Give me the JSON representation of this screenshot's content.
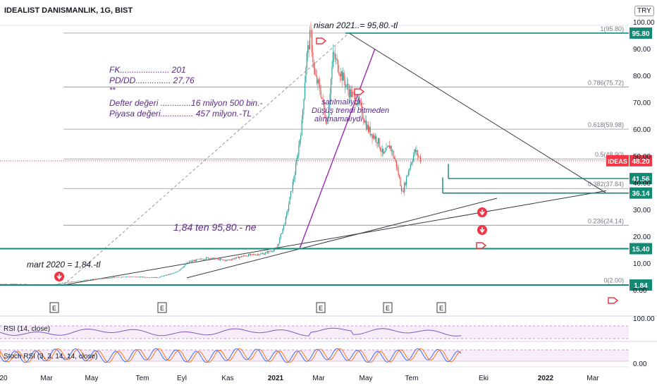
{
  "header": {
    "title": "IDEALIST DANISMANLIK, 1G, BIST",
    "currency": "TRY"
  },
  "colors": {
    "up": "#26a69a",
    "down": "#ef5350",
    "purple": "#9c27b0",
    "teal": "#138a74",
    "red": "#f23645",
    "annotation": "#5b2a86"
  },
  "chart_data": {
    "type": "candlestick",
    "symbol": "IDEAS",
    "last_price": 48.2,
    "last_price_label": "48.20",
    "y_ticks": [
      "100.00",
      "90.00",
      "80.00",
      "70.00",
      "60.00",
      "50.00",
      "40.00",
      "30.00",
      "20.00",
      "10.00",
      "0.00"
    ],
    "x_ticks": [
      "20",
      "Mar",
      "May",
      "Tem",
      "Eyl",
      "Kas",
      "2021",
      "Mar",
      "May",
      "Tem",
      "Eki",
      "2022",
      "Mar"
    ],
    "fibonacci": [
      {
        "ratio": 1,
        "value": 95.8,
        "label": "1(95.80)"
      },
      {
        "ratio": 0.786,
        "value": 75.72,
        "label": "0.786(75.72)"
      },
      {
        "ratio": 0.618,
        "value": 59.98,
        "label": "0.618(59.98)"
      },
      {
        "ratio": 0.5,
        "value": 48.9,
        "label": "0.5(48.90)"
      },
      {
        "ratio": 0.382,
        "value": 37.84,
        "label": "0.382(37.84)"
      },
      {
        "ratio": 0.236,
        "value": 24.14,
        "label": "0.236(24.14)"
      },
      {
        "ratio": 0,
        "value": 2.0,
        "label": "0(2.00)"
      }
    ],
    "horizontal_levels": [
      {
        "value": 95.8,
        "label": "95.80"
      },
      {
        "value": 41.56,
        "label": "41.56"
      },
      {
        "value": 36.14,
        "label": "36.14"
      },
      {
        "value": 15.4,
        "label": "15.40"
      },
      {
        "value": 1.84,
        "label": "1.84"
      }
    ],
    "annotations": {
      "peak": "nisan 2021..= 95,80.-tl",
      "start": "mart 2020 = 1,84.-tl",
      "rise": "1,84 ten 95,80.- ne",
      "fk": "FK..................... 201",
      "pddd": "PD/DD............... 27,76",
      "stars": "**",
      "defter": "Defter değeri .............16 milyon 500 bin.-",
      "piyasa": "Piyasa değeri.............. 457 milyon.-TL",
      "note1": "satılmalıydı..",
      "note2": "Düşüş trendi bitmeden",
      "note3": "alınmamalıydı"
    },
    "earnings_marker": "E",
    "earnings_count": 5,
    "path": [
      [
        0,
        2.2
      ],
      [
        0.05,
        2.0
      ],
      [
        0.085,
        1.84
      ],
      [
        0.1,
        2.6
      ],
      [
        0.15,
        4.0
      ],
      [
        0.2,
        5.0
      ],
      [
        0.25,
        4.6
      ],
      [
        0.28,
        6.5
      ],
      [
        0.3,
        10.5
      ],
      [
        0.33,
        12.0
      ],
      [
        0.36,
        11.0
      ],
      [
        0.39,
        12.8
      ],
      [
        0.42,
        13.6
      ],
      [
        0.44,
        15.4
      ],
      [
        0.455,
        27
      ],
      [
        0.47,
        45
      ],
      [
        0.48,
        62
      ],
      [
        0.487,
        86
      ],
      [
        0.494,
        95.8
      ],
      [
        0.5,
        80
      ],
      [
        0.51,
        74
      ],
      [
        0.52,
        62
      ],
      [
        0.53,
        88
      ],
      [
        0.54,
        82
      ],
      [
        0.555,
        74
      ],
      [
        0.57,
        70
      ],
      [
        0.585,
        60
      ],
      [
        0.6,
        56
      ],
      [
        0.61,
        50
      ],
      [
        0.62,
        54
      ],
      [
        0.63,
        47
      ],
      [
        0.64,
        36.14
      ],
      [
        0.65,
        45
      ],
      [
        0.66,
        52
      ],
      [
        0.67,
        48.2
      ]
    ]
  },
  "indicators": {
    "rsi": {
      "label": "RSI (14, close)",
      "ticks": [
        "100.00"
      ]
    },
    "stoch": {
      "label": "Stoch RSI (3, 3, 14, 14, close)",
      "ticks": [
        "0.00"
      ]
    }
  }
}
